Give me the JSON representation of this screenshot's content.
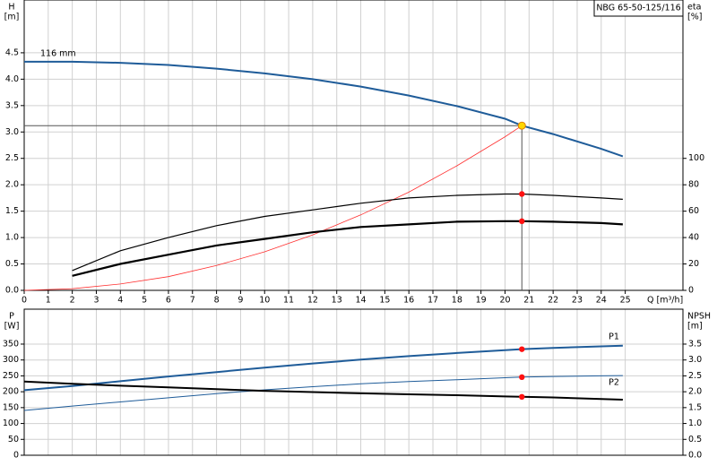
{
  "chart_data": [
    {
      "type": "line",
      "title": "NBG 65-50-125/116",
      "annotation": "116 mm",
      "ylabel": "H",
      "yunit": "[m]",
      "y2label": "eta",
      "y2unit": "[%]",
      "xlabel": "Q [m³/h]",
      "xlim": [
        0,
        27.4
      ],
      "ylim": [
        0,
        5.5
      ],
      "y2lim": [
        0,
        220
      ],
      "xticks": [
        0,
        1,
        2,
        3,
        4,
        5,
        6,
        7,
        8,
        9,
        10,
        11,
        12,
        13,
        14,
        15,
        16,
        17,
        18,
        19,
        20,
        21,
        22,
        23,
        24,
        25
      ],
      "yticks": [
        {
          "value": 0,
          "label": "0.0"
        },
        0.5,
        {
          "value": 1,
          "label": "1.0"
        },
        1.5,
        {
          "value": 2,
          "label": "2.0"
        },
        2.5,
        {
          "value": 3,
          "label": "3.0"
        },
        3.5,
        {
          "value": 4,
          "label": "4.0"
        },
        4.5
      ],
      "y2ticks": [
        0,
        20,
        40,
        60,
        80,
        100
      ],
      "grid": true,
      "duty_point": {
        "x": 20.7,
        "y": 3.12
      },
      "x": [
        0,
        2,
        4,
        6,
        8,
        10,
        12,
        14,
        16,
        18,
        20,
        20.7,
        22,
        24,
        24.9
      ],
      "series": [
        {
          "color": "#1f5c99",
          "line_width": 2,
          "axis": "y",
          "dot": false,
          "values": [
            4.33,
            4.33,
            4.31,
            4.27,
            4.2,
            4.11,
            4.0,
            3.86,
            3.69,
            3.49,
            3.25,
            3.12,
            2.96,
            2.68,
            2.54
          ]
        },
        {
          "color": "#ff3030",
          "line_width": 0.8,
          "axis": "y",
          "dot": false,
          "values": [
            0,
            0.03,
            0.12,
            0.26,
            0.47,
            0.73,
            1.05,
            1.43,
            1.86,
            2.36,
            2.91,
            3.12,
            null,
            null,
            null
          ]
        },
        {
          "color": "#000000",
          "line_width": 1.2,
          "axis": "y2",
          "dot": true,
          "values": [
            null,
            15,
            30,
            40,
            49,
            56,
            61,
            66,
            70,
            72,
            73,
            73,
            72,
            70,
            69
          ]
        },
        {
          "color": "#000000",
          "line_width": 2.2,
          "axis": "y2",
          "dot": true,
          "values": [
            null,
            11,
            20,
            27,
            34,
            39,
            44,
            48,
            50,
            52,
            52.4,
            52.4,
            52,
            51,
            50
          ]
        }
      ]
    },
    {
      "type": "line",
      "ylabel": "P",
      "yunit": "[W]",
      "y2label": "NPSH",
      "y2unit": "[m]",
      "xlim": [
        0,
        27.4
      ],
      "ylim": [
        0,
        460
      ],
      "y2lim": [
        0,
        4.6
      ],
      "xticks": [
        0,
        1,
        2,
        3,
        4,
        5,
        6,
        7,
        8,
        9,
        10,
        11,
        12,
        13,
        14,
        15,
        16,
        17,
        18,
        19,
        20,
        21,
        22,
        23,
        24,
        25
      ],
      "yticks": [
        0,
        50,
        100,
        150,
        200,
        250,
        300,
        350
      ],
      "y2ticks": [
        {
          "value": 0,
          "label": "0.0"
        },
        0.5,
        {
          "value": 1,
          "label": "1.0"
        },
        1.5,
        {
          "value": 2,
          "label": "2.0"
        },
        2.5,
        {
          "value": 3,
          "label": "3.0"
        },
        3.5
      ],
      "grid": true,
      "duty_point": {
        "x": 20.7
      },
      "x": [
        0,
        2,
        4,
        6,
        8,
        10,
        12,
        14,
        16,
        18,
        20,
        20.7,
        22,
        24,
        24.9
      ],
      "series": [
        {
          "name": "P1",
          "color": "#1f5c99",
          "line_width": 2,
          "axis": "y",
          "dot": true,
          "values": [
            205,
            218,
            233,
            248,
            262,
            276,
            289,
            301,
            312,
            322,
            331,
            334,
            338,
            343,
            345
          ]
        },
        {
          "name": "P2",
          "color": "#1f5c99",
          "line_width": 1,
          "axis": "y",
          "dot": true,
          "values": [
            141,
            155,
            168,
            181,
            194,
            206,
            216,
            225,
            232,
            238,
            244,
            246,
            248,
            250,
            251
          ]
        },
        {
          "color": "#000000",
          "line_width": 2,
          "axis": "y2",
          "dot": true,
          "values": [
            2.32,
            2.25,
            2.19,
            2.14,
            2.08,
            2.03,
            1.99,
            1.95,
            1.92,
            1.89,
            1.85,
            1.84,
            1.82,
            1.77,
            1.75
          ]
        }
      ]
    }
  ]
}
